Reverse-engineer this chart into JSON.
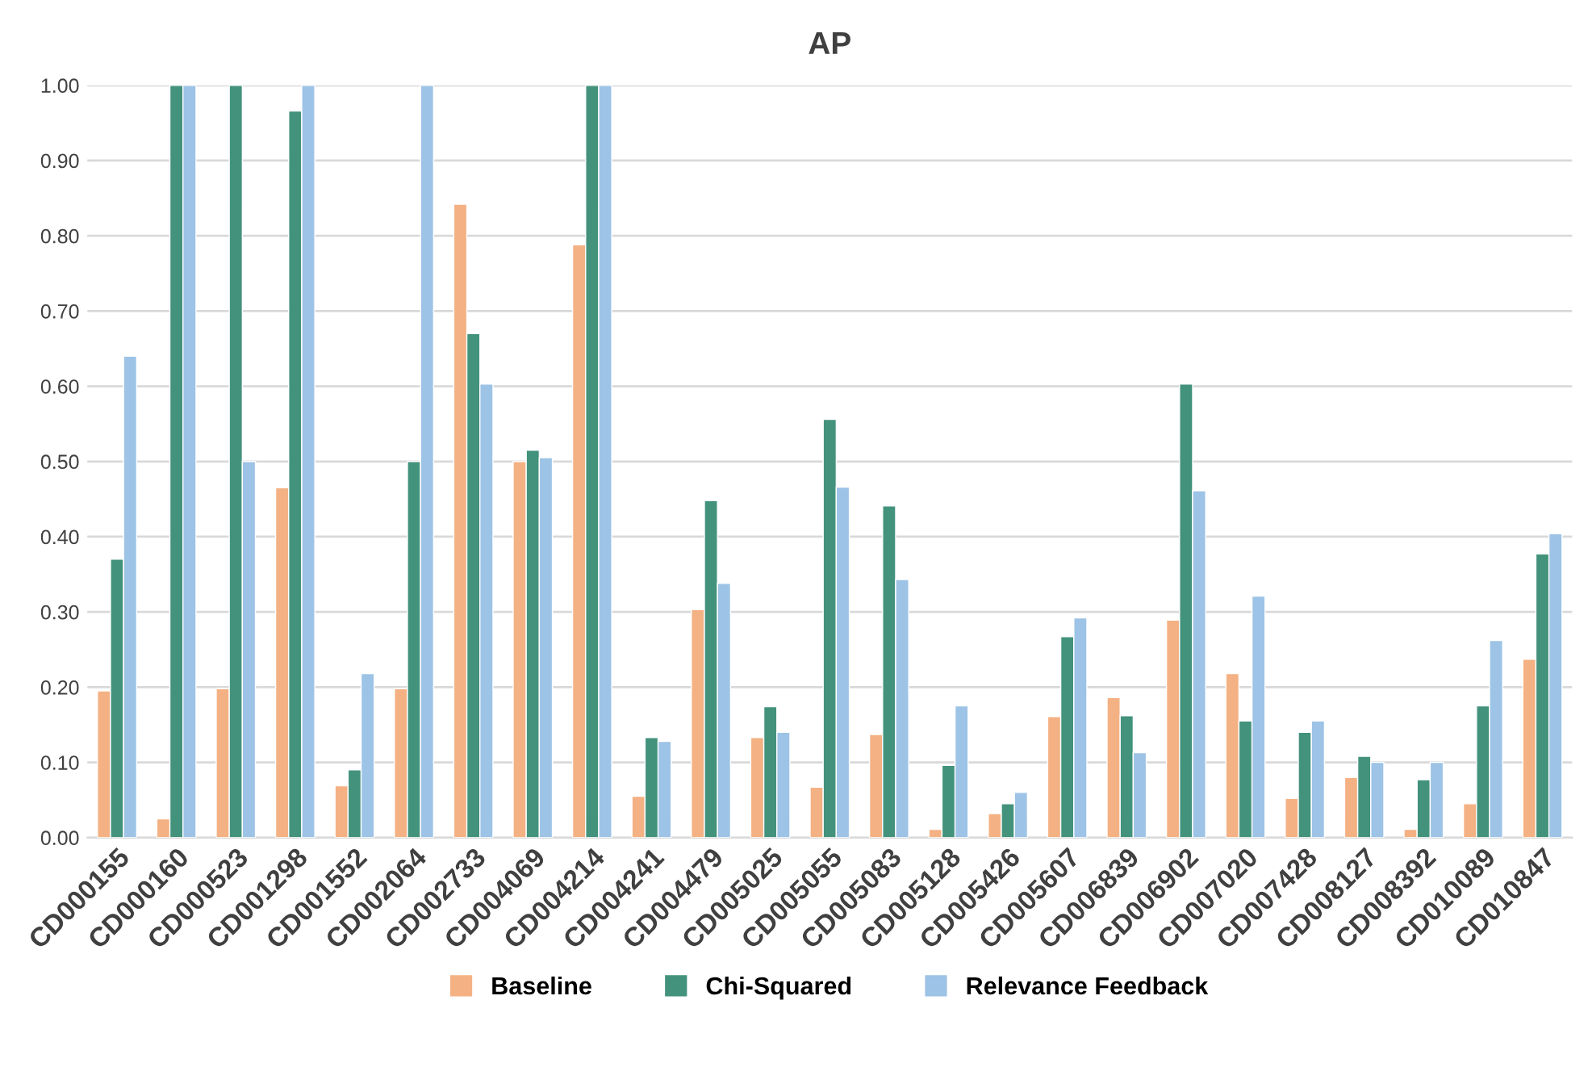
{
  "chart_data": {
    "type": "bar",
    "title": "AP",
    "categories": [
      "CD000155",
      "CD000160",
      "CD000523",
      "CD001298",
      "CD001552",
      "CD002064",
      "CD002733",
      "CD004069",
      "CD004214",
      "CD004241",
      "CD004479",
      "CD005025",
      "CD005055",
      "CD005083",
      "CD005128",
      "CD005426",
      "CD005607",
      "CD006839",
      "CD006902",
      "CD007020",
      "CD007428",
      "CD008127",
      "CD008392",
      "CD010089",
      "CD010847"
    ],
    "series": [
      {
        "name": "Baseline",
        "color": "#f4b183",
        "values": [
          0.195,
          0.025,
          0.198,
          0.465,
          0.069,
          0.198,
          0.842,
          0.5,
          0.788,
          0.055,
          0.303,
          0.133,
          0.067,
          0.137,
          0.011,
          0.032,
          0.161,
          0.186,
          0.289,
          0.218,
          0.052,
          0.08,
          0.011,
          0.045,
          0.237
        ]
      },
      {
        "name": "Chi-Squared",
        "color": "#43927c",
        "values": [
          0.37,
          1.0,
          1.0,
          0.966,
          0.09,
          0.5,
          0.67,
          0.515,
          1.0,
          0.133,
          0.448,
          0.174,
          0.556,
          0.441,
          0.096,
          0.045,
          0.267,
          0.162,
          0.603,
          0.155,
          0.14,
          0.108,
          0.077,
          0.175,
          0.377
        ]
      },
      {
        "name": "Relevance Feedback",
        "color": "#9dc3e6",
        "values": [
          0.64,
          1.0,
          0.5,
          1.0,
          0.218,
          1.0,
          0.603,
          0.505,
          1.0,
          0.128,
          0.338,
          0.14,
          0.466,
          0.343,
          0.175,
          0.06,
          0.292,
          0.113,
          0.461,
          0.321,
          0.155,
          0.1,
          0.1,
          0.262,
          0.404
        ]
      }
    ],
    "ylim": [
      0,
      1.0
    ],
    "yticks": [
      {
        "value": 0,
        "label": "0.00"
      },
      {
        "value": 0.1,
        "label": "0.10"
      },
      {
        "value": 0.2,
        "label": "0.20"
      },
      {
        "value": 0.3,
        "label": "0.30"
      },
      {
        "value": 0.4,
        "label": "0.40"
      },
      {
        "value": 0.5,
        "label": "0.50"
      },
      {
        "value": 0.6,
        "label": "0.60"
      },
      {
        "value": 0.7,
        "label": "0.70"
      },
      {
        "value": 0.8,
        "label": "0.80"
      },
      {
        "value": 0.9,
        "label": "0.90"
      },
      {
        "value": 1.0,
        "label": "1.00"
      }
    ],
    "grid": "y",
    "legend": "bottom"
  }
}
